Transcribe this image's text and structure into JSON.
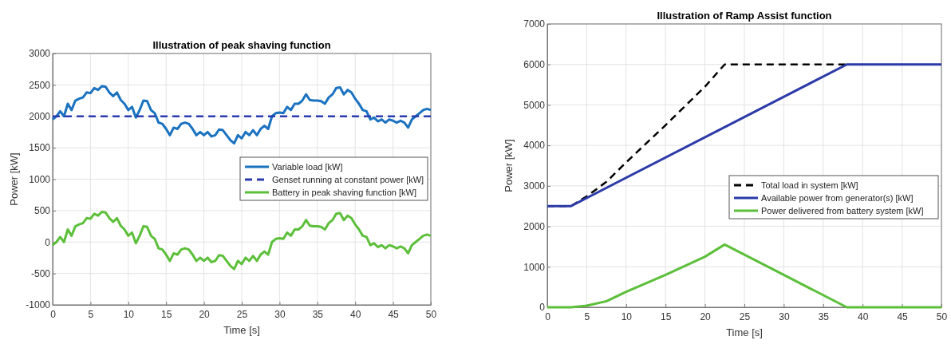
{
  "chart_data": [
    {
      "type": "line",
      "title": "Illustration of peak shaving function",
      "xlabel": "Time [s]",
      "ylabel": "Power [kW]",
      "xlim": [
        0,
        50
      ],
      "xticks": [
        0,
        5,
        10,
        15,
        20,
        25,
        30,
        35,
        40,
        45,
        50
      ],
      "ylim": [
        -1000,
        3000
      ],
      "yticks": [
        -1000,
        -500,
        0,
        500,
        1000,
        1500,
        2000,
        2500,
        3000
      ],
      "grid": true,
      "legend": "right",
      "series": [
        {
          "name": "Variable load [kW]",
          "color": "#1a72c0",
          "line_style": "solid",
          "x": [
            0,
            0.5,
            1,
            1.5,
            2,
            2.5,
            3,
            3.5,
            4,
            4.5,
            5,
            5.5,
            6,
            6.5,
            7,
            7.5,
            8,
            8.5,
            9,
            9.5,
            10,
            10.5,
            11,
            11.5,
            12,
            12.5,
            13,
            13.5,
            14,
            14.5,
            15,
            15.5,
            16,
            16.5,
            17,
            17.5,
            18,
            18.5,
            19,
            19.5,
            20,
            20.5,
            21,
            21.5,
            22,
            22.5,
            23,
            23.5,
            24,
            24.5,
            25,
            25.5,
            26,
            26.5,
            27,
            27.5,
            28,
            28.5,
            29,
            29.5,
            30,
            30.5,
            31,
            31.5,
            32,
            32.5,
            33,
            33.5,
            34,
            34.5,
            35,
            35.5,
            36,
            36.5,
            37,
            37.5,
            38,
            38.5,
            39,
            39.5,
            40,
            40.5,
            41,
            41.5,
            42,
            42.5,
            43,
            43.5,
            44,
            44.5,
            45,
            45.5,
            46,
            46.5,
            47,
            47.5,
            48,
            48.5,
            49,
            49.5,
            50
          ],
          "values": [
            1950,
            2000,
            2080,
            2000,
            2200,
            2100,
            2250,
            2280,
            2300,
            2380,
            2370,
            2450,
            2420,
            2480,
            2470,
            2380,
            2320,
            2380,
            2260,
            2200,
            2100,
            2150,
            1980,
            2100,
            2250,
            2240,
            2100,
            2050,
            1900,
            1880,
            1800,
            1700,
            1820,
            1800,
            1880,
            1900,
            1880,
            1800,
            1700,
            1750,
            1700,
            1750,
            1680,
            1700,
            1790,
            1780,
            1700,
            1620,
            1570,
            1700,
            1650,
            1750,
            1700,
            1780,
            1700,
            1800,
            1850,
            1800,
            2000,
            2050,
            2060,
            2050,
            2150,
            2100,
            2200,
            2200,
            2250,
            2350,
            2260,
            2250,
            2250,
            2240,
            2200,
            2300,
            2350,
            2450,
            2460,
            2350,
            2420,
            2380,
            2280,
            2200,
            2100,
            2080,
            1950,
            1980,
            1920,
            1950,
            1900,
            1950,
            1930,
            1900,
            1930,
            1900,
            1820,
            1950,
            2000,
            2050,
            2100,
            2120,
            2100
          ]
        },
        {
          "name": "Genset running at constant power [kW]",
          "color": "#2a3bb0",
          "line_style": "dashed",
          "x": [
            0,
            50
          ],
          "values": [
            2000,
            2000
          ]
        },
        {
          "name": "Battery in peak shaving function [kW]",
          "color": "#5cbf3a",
          "line_style": "solid",
          "x": [
            0,
            0.5,
            1,
            1.5,
            2,
            2.5,
            3,
            3.5,
            4,
            4.5,
            5,
            5.5,
            6,
            6.5,
            7,
            7.5,
            8,
            8.5,
            9,
            9.5,
            10,
            10.5,
            11,
            11.5,
            12,
            12.5,
            13,
            13.5,
            14,
            14.5,
            15,
            15.5,
            16,
            16.5,
            17,
            17.5,
            18,
            18.5,
            19,
            19.5,
            20,
            20.5,
            21,
            21.5,
            22,
            22.5,
            23,
            23.5,
            24,
            24.5,
            25,
            25.5,
            26,
            26.5,
            27,
            27.5,
            28,
            28.5,
            29,
            29.5,
            30,
            30.5,
            31,
            31.5,
            32,
            32.5,
            33,
            33.5,
            34,
            34.5,
            35,
            35.5,
            36,
            36.5,
            37,
            37.5,
            38,
            38.5,
            39,
            39.5,
            40,
            40.5,
            41,
            41.5,
            42,
            42.5,
            43,
            43.5,
            44,
            44.5,
            45,
            45.5,
            46,
            46.5,
            47,
            47.5,
            48,
            48.5,
            49,
            49.5,
            50
          ],
          "values": [
            -50,
            0,
            80,
            0,
            200,
            100,
            250,
            280,
            300,
            380,
            370,
            450,
            420,
            480,
            470,
            380,
            320,
            380,
            260,
            200,
            100,
            150,
            -20,
            100,
            250,
            240,
            100,
            50,
            -100,
            -120,
            -200,
            -300,
            -180,
            -200,
            -120,
            -100,
            -120,
            -200,
            -300,
            -250,
            -300,
            -250,
            -320,
            -300,
            -210,
            -220,
            -300,
            -380,
            -430,
            -300,
            -350,
            -250,
            -300,
            -220,
            -300,
            -200,
            -150,
            -200,
            0,
            50,
            60,
            50,
            150,
            100,
            200,
            200,
            250,
            350,
            260,
            250,
            250,
            240,
            200,
            300,
            350,
            450,
            460,
            350,
            420,
            380,
            280,
            200,
            100,
            80,
            -50,
            -20,
            -80,
            -50,
            -100,
            -50,
            -70,
            -100,
            -70,
            -100,
            -180,
            -50,
            0,
            50,
            100,
            120,
            100
          ]
        }
      ]
    },
    {
      "type": "line",
      "title": "Illustration of Ramp Assist function",
      "xlabel": "Time [s]",
      "ylabel": "Power [kW]",
      "xlim": [
        0,
        50
      ],
      "xticks": [
        0,
        5,
        10,
        15,
        20,
        25,
        30,
        35,
        40,
        45,
        50
      ],
      "ylim": [
        0,
        7000
      ],
      "yticks": [
        0,
        1000,
        2000,
        3000,
        4000,
        5000,
        6000,
        7000
      ],
      "grid": true,
      "legend": "right",
      "series": [
        {
          "name": "Total load in system [kW]",
          "color": "#000000",
          "line_style": "dashed",
          "x": [
            0,
            3,
            5,
            7.5,
            10,
            15,
            20,
            22.5,
            38
          ],
          "values": [
            2500,
            2500,
            2740,
            3100,
            3580,
            4500,
            5450,
            6000,
            6000
          ]
        },
        {
          "name": "Available power from generator(s) [kW]",
          "color": "#2b3aa8",
          "line_style": "solid",
          "x": [
            0,
            3,
            38,
            50
          ],
          "values": [
            2500,
            2500,
            6000,
            6000
          ]
        },
        {
          "name": "Power delivered from battery system [kW]",
          "color": "#5cbf3a",
          "line_style": "solid",
          "x": [
            0,
            3,
            5,
            7.5,
            10,
            15,
            20,
            22.5,
            30,
            38,
            50
          ],
          "values": [
            0,
            0,
            40,
            150,
            380,
            800,
            1250,
            1550,
            800,
            0,
            0
          ]
        }
      ]
    }
  ]
}
